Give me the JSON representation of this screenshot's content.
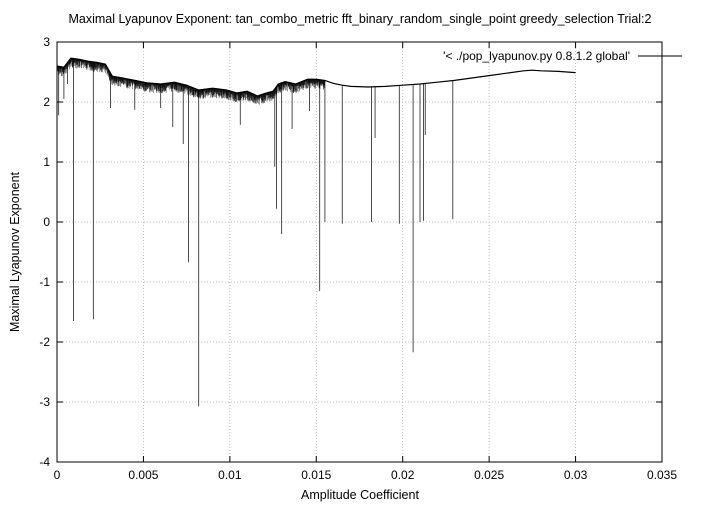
{
  "chart_data": {
    "type": "line",
    "title": "Maximal Lyapunov Exponent: tan_combo_metric fft_binary_random_single_point greedy_selection Trial:2",
    "xlabel": "Amplitude Coefficient",
    "ylabel": "Maximal Lyapunov Exponent",
    "xlim": [
      0,
      0.035
    ],
    "ylim": [
      -4,
      3
    ],
    "xticks": [
      0,
      0.005,
      0.01,
      0.015,
      0.02,
      0.025,
      0.03,
      0.035
    ],
    "xtick_labels": [
      "0",
      "0.005",
      "0.01",
      "0.015",
      "0.02",
      "0.025",
      "0.03",
      "0.035"
    ],
    "yticks": [
      -4,
      -3,
      -2,
      -1,
      0,
      1,
      2,
      3
    ],
    "ytick_labels": [
      "-4",
      "-3",
      "-2",
      "-1",
      "0",
      "1",
      "2",
      "3"
    ],
    "grid": true,
    "legend_position": "top-right",
    "series": [
      {
        "name": "'< ./pop_lyapunov.py 0.8.1.2 global'",
        "color": "#000000",
        "envelope": {
          "x": [
            0,
            0.0004,
            0.0008,
            0.0013,
            0.0018,
            0.0023,
            0.0028,
            0.0032,
            0.0038,
            0.0045,
            0.0052,
            0.006,
            0.0068,
            0.0075,
            0.0082,
            0.009,
            0.0098,
            0.0104,
            0.011,
            0.0116,
            0.012,
            0.0125,
            0.0128,
            0.0132,
            0.0138,
            0.0145,
            0.015,
            0.0155,
            0.016,
            0.0165,
            0.017,
            0.018,
            0.019,
            0.02,
            0.021,
            0.022,
            0.023,
            0.024,
            0.025,
            0.026,
            0.027,
            0.0275,
            0.028,
            0.029,
            0.03
          ],
          "y": [
            2.6,
            2.58,
            2.73,
            2.71,
            2.68,
            2.66,
            2.63,
            2.43,
            2.4,
            2.36,
            2.32,
            2.3,
            2.33,
            2.28,
            2.2,
            2.23,
            2.2,
            2.15,
            2.18,
            2.1,
            2.14,
            2.18,
            2.3,
            2.34,
            2.3,
            2.38,
            2.38,
            2.36,
            2.31,
            2.28,
            2.26,
            2.25,
            2.26,
            2.28,
            2.3,
            2.33,
            2.36,
            2.4,
            2.44,
            2.48,
            2.52,
            2.53,
            2.52,
            2.51,
            2.49
          ]
        },
        "spikes": [
          {
            "x": 0.0001,
            "y": 1.78
          },
          {
            "x": 0.0004,
            "y": 2.05
          },
          {
            "x": 0.0006,
            "y": 2.3
          },
          {
            "x": 0.00095,
            "y": -1.65
          },
          {
            "x": 0.0021,
            "y": -1.62
          },
          {
            "x": 0.0031,
            "y": 1.9
          },
          {
            "x": 0.0045,
            "y": 1.87
          },
          {
            "x": 0.006,
            "y": 1.9
          },
          {
            "x": 0.0067,
            "y": 1.58
          },
          {
            "x": 0.0073,
            "y": 1.3
          },
          {
            "x": 0.0076,
            "y": -0.67
          },
          {
            "x": 0.0082,
            "y": -3.07
          },
          {
            "x": 0.0106,
            "y": 1.62
          },
          {
            "x": 0.0126,
            "y": 0.92
          },
          {
            "x": 0.0127,
            "y": 0.22
          },
          {
            "x": 0.013,
            "y": -0.2
          },
          {
            "x": 0.0136,
            "y": 1.55
          },
          {
            "x": 0.0146,
            "y": 1.85
          },
          {
            "x": 0.0152,
            "y": -1.15
          },
          {
            "x": 0.0155,
            "y": 0.0
          },
          {
            "x": 0.0165,
            "y": -0.03
          },
          {
            "x": 0.0182,
            "y": 0.0
          },
          {
            "x": 0.0184,
            "y": 1.4
          },
          {
            "x": 0.0198,
            "y": -0.03
          },
          {
            "x": 0.0206,
            "y": -2.17
          },
          {
            "x": 0.021,
            "y": 0.0
          },
          {
            "x": 0.0212,
            "y": 0.02
          },
          {
            "x": 0.0213,
            "y": 1.45
          },
          {
            "x": 0.0229,
            "y": 0.05
          }
        ]
      }
    ]
  }
}
